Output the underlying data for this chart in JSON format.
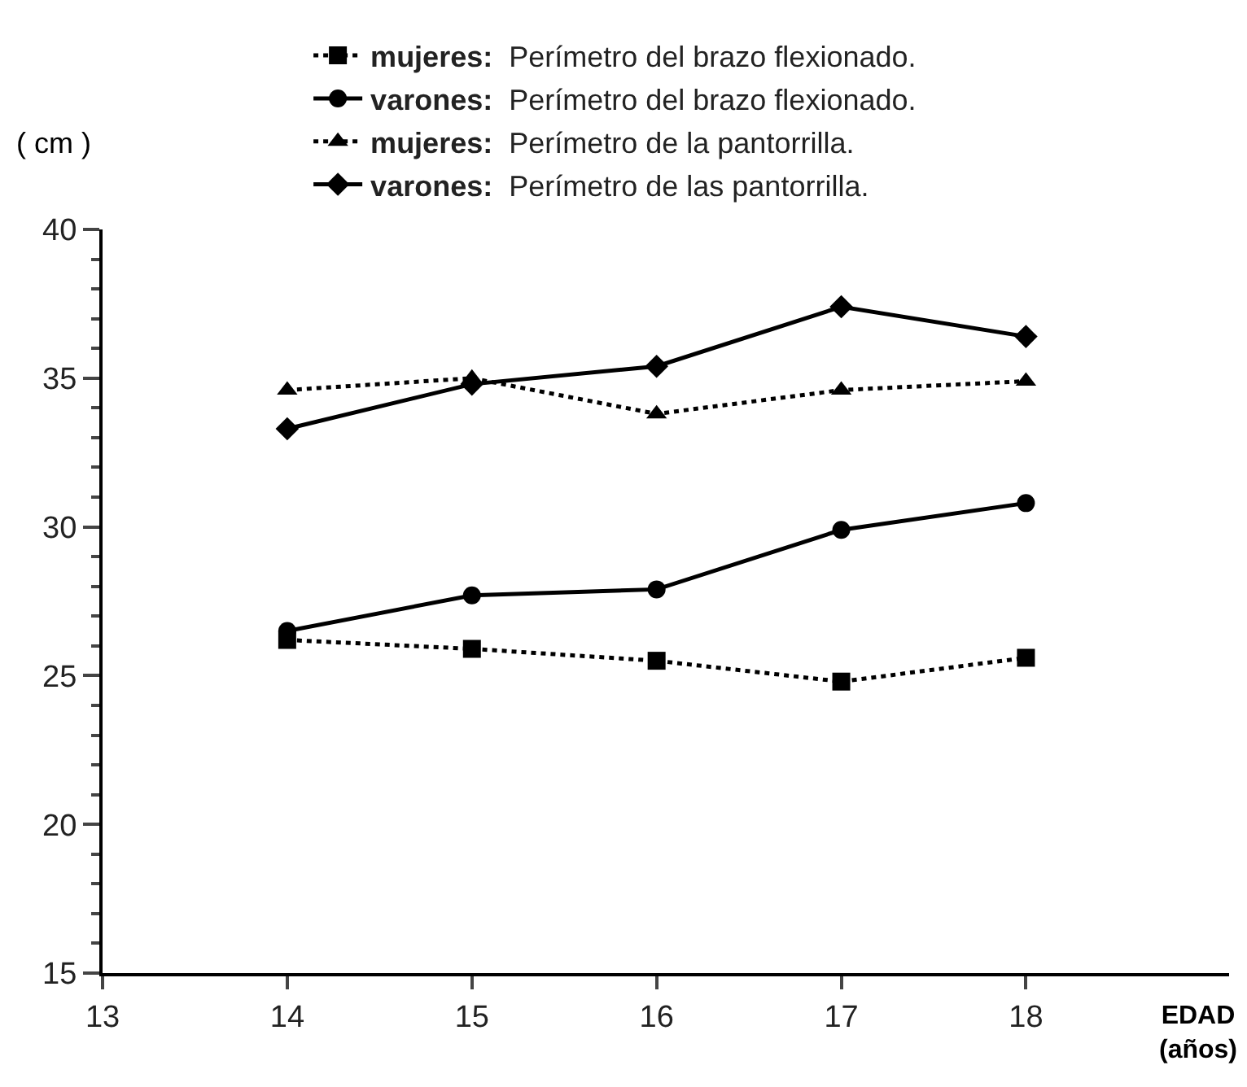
{
  "chart_data": {
    "type": "line",
    "x": [
      14,
      15,
      16,
      17,
      18
    ],
    "series": [
      {
        "name": "mujeres: Perímetro del brazo flexionado.",
        "color": "#000000",
        "marker": "square",
        "line_style": "dotted",
        "values": [
          26.2,
          25.9,
          25.5,
          24.8,
          25.6
        ]
      },
      {
        "name": "varones: Perímetro del brazo flexionado.",
        "color": "#000000",
        "marker": "circle",
        "line_style": "solid",
        "values": [
          26.5,
          27.7,
          27.9,
          29.9,
          30.8
        ]
      },
      {
        "name": "mujeres: Perímetro de la pantorrilla.",
        "color": "#000000",
        "marker": "triangle",
        "line_style": "dotted",
        "values": [
          34.6,
          35.0,
          33.8,
          34.6,
          34.9
        ]
      },
      {
        "name": "varones: Perímetro de las pantorrilla.",
        "color": "#000000",
        "marker": "diamond",
        "line_style": "solid",
        "values": [
          33.3,
          34.8,
          35.4,
          37.4,
          36.4
        ]
      }
    ],
    "xlabel": "EDAD\n(años)",
    "ylabel": "( cm )",
    "xlim": [
      13,
      19.1
    ],
    "xticks": [
      13,
      14,
      15,
      16,
      17,
      18
    ],
    "ylim": [
      15,
      40
    ],
    "yticks": [
      15,
      20,
      25,
      30,
      35,
      40
    ],
    "grid": false,
    "legend": "top"
  }
}
